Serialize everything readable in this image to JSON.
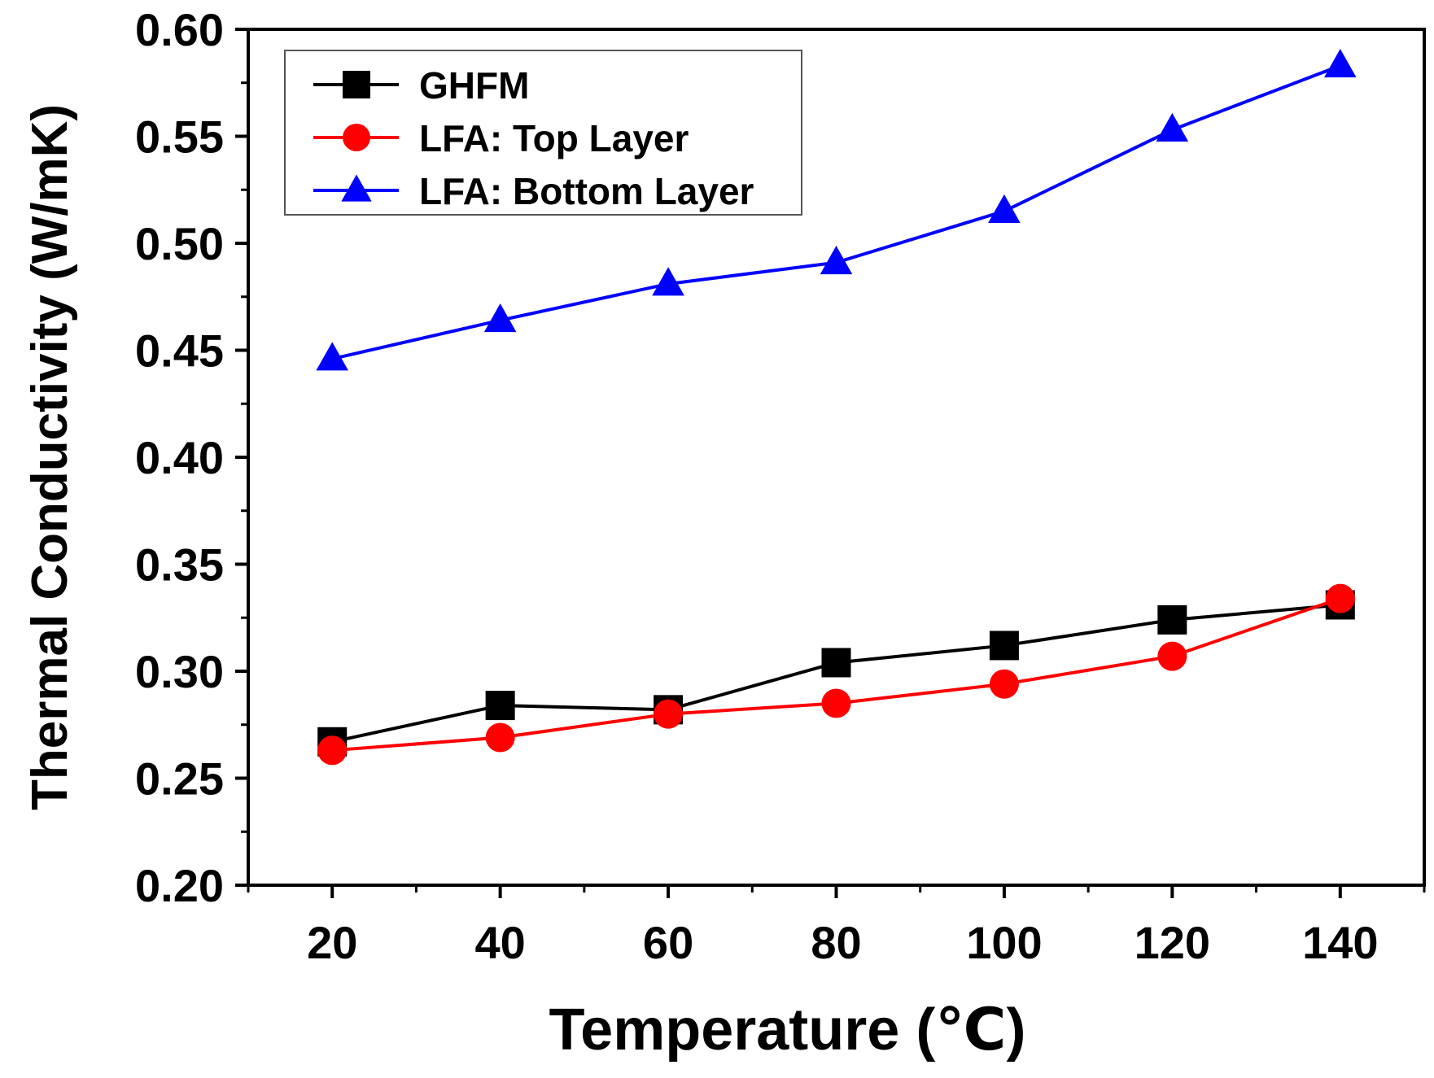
{
  "chart_data": {
    "type": "line",
    "title": "",
    "xlabel": "Temperature (℃)",
    "ylabel": "Thermal Conductivity (W/mK)",
    "x": [
      20,
      40,
      60,
      80,
      100,
      120,
      140
    ],
    "xlim": [
      10,
      150
    ],
    "ylim": [
      0.2,
      0.6
    ],
    "xticks": [
      20,
      40,
      60,
      80,
      100,
      120,
      140
    ],
    "xtick_labels": [
      "20",
      "40",
      "60",
      "80",
      "100",
      "120",
      "140"
    ],
    "yticks": [
      0.2,
      0.25,
      0.3,
      0.35,
      0.4,
      0.45,
      0.5,
      0.55,
      0.6
    ],
    "ytick_labels": [
      "0.20",
      "0.25",
      "0.30",
      "0.35",
      "0.40",
      "0.45",
      "0.50",
      "0.55",
      "0.60"
    ],
    "grid": false,
    "legend_position": "top-left",
    "series": [
      {
        "name": "GHFM",
        "color": "#000000",
        "marker": "square",
        "values": [
          0.267,
          0.284,
          0.282,
          0.304,
          0.312,
          0.324,
          0.331
        ]
      },
      {
        "name": "LFA: Top Layer",
        "color": "#ff0000",
        "marker": "circle",
        "values": [
          0.263,
          0.269,
          0.28,
          0.285,
          0.294,
          0.307,
          0.334
        ]
      },
      {
        "name": "LFA: Bottom Layer",
        "color": "#0000ff",
        "marker": "triangle",
        "values": [
          0.446,
          0.464,
          0.481,
          0.491,
          0.515,
          0.553,
          0.583
        ]
      }
    ]
  }
}
